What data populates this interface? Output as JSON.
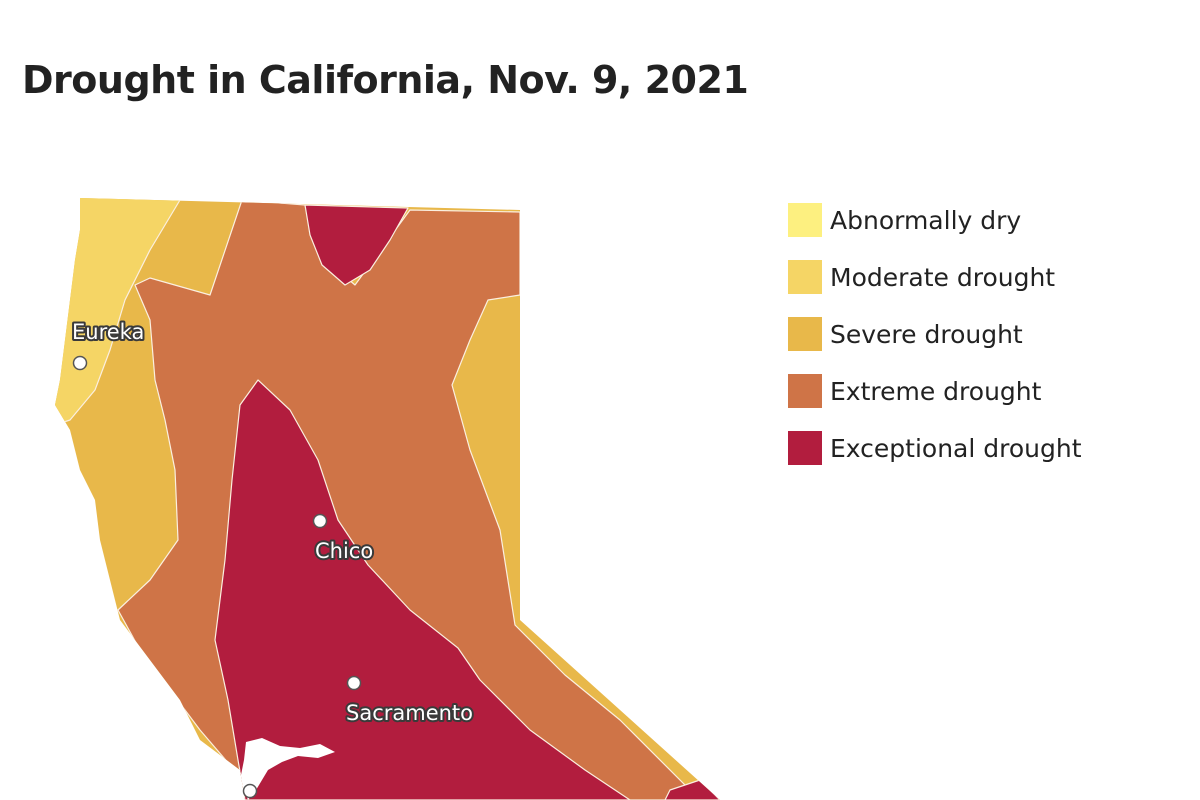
{
  "title": "Drought in California, Nov. 9, 2021",
  "legend": {
    "items": [
      {
        "id": "abnormally-dry",
        "label": "Abnormally dry",
        "color": "#fdf080"
      },
      {
        "id": "moderate-drought",
        "label": "Moderate drought",
        "color": "#f5d565"
      },
      {
        "id": "severe-drought",
        "label": "Severe drought",
        "color": "#e8b84a"
      },
      {
        "id": "extreme-drought",
        "label": "Extreme drought",
        "color": "#cf7447"
      },
      {
        "id": "exceptional-drought",
        "label": "Exceptional drought",
        "color": "#b21d3e"
      }
    ]
  },
  "cities": [
    {
      "id": "eureka",
      "name": "Eureka"
    },
    {
      "id": "chico",
      "name": "Chico"
    },
    {
      "id": "sacramento",
      "name": "Sacramento"
    }
  ]
}
